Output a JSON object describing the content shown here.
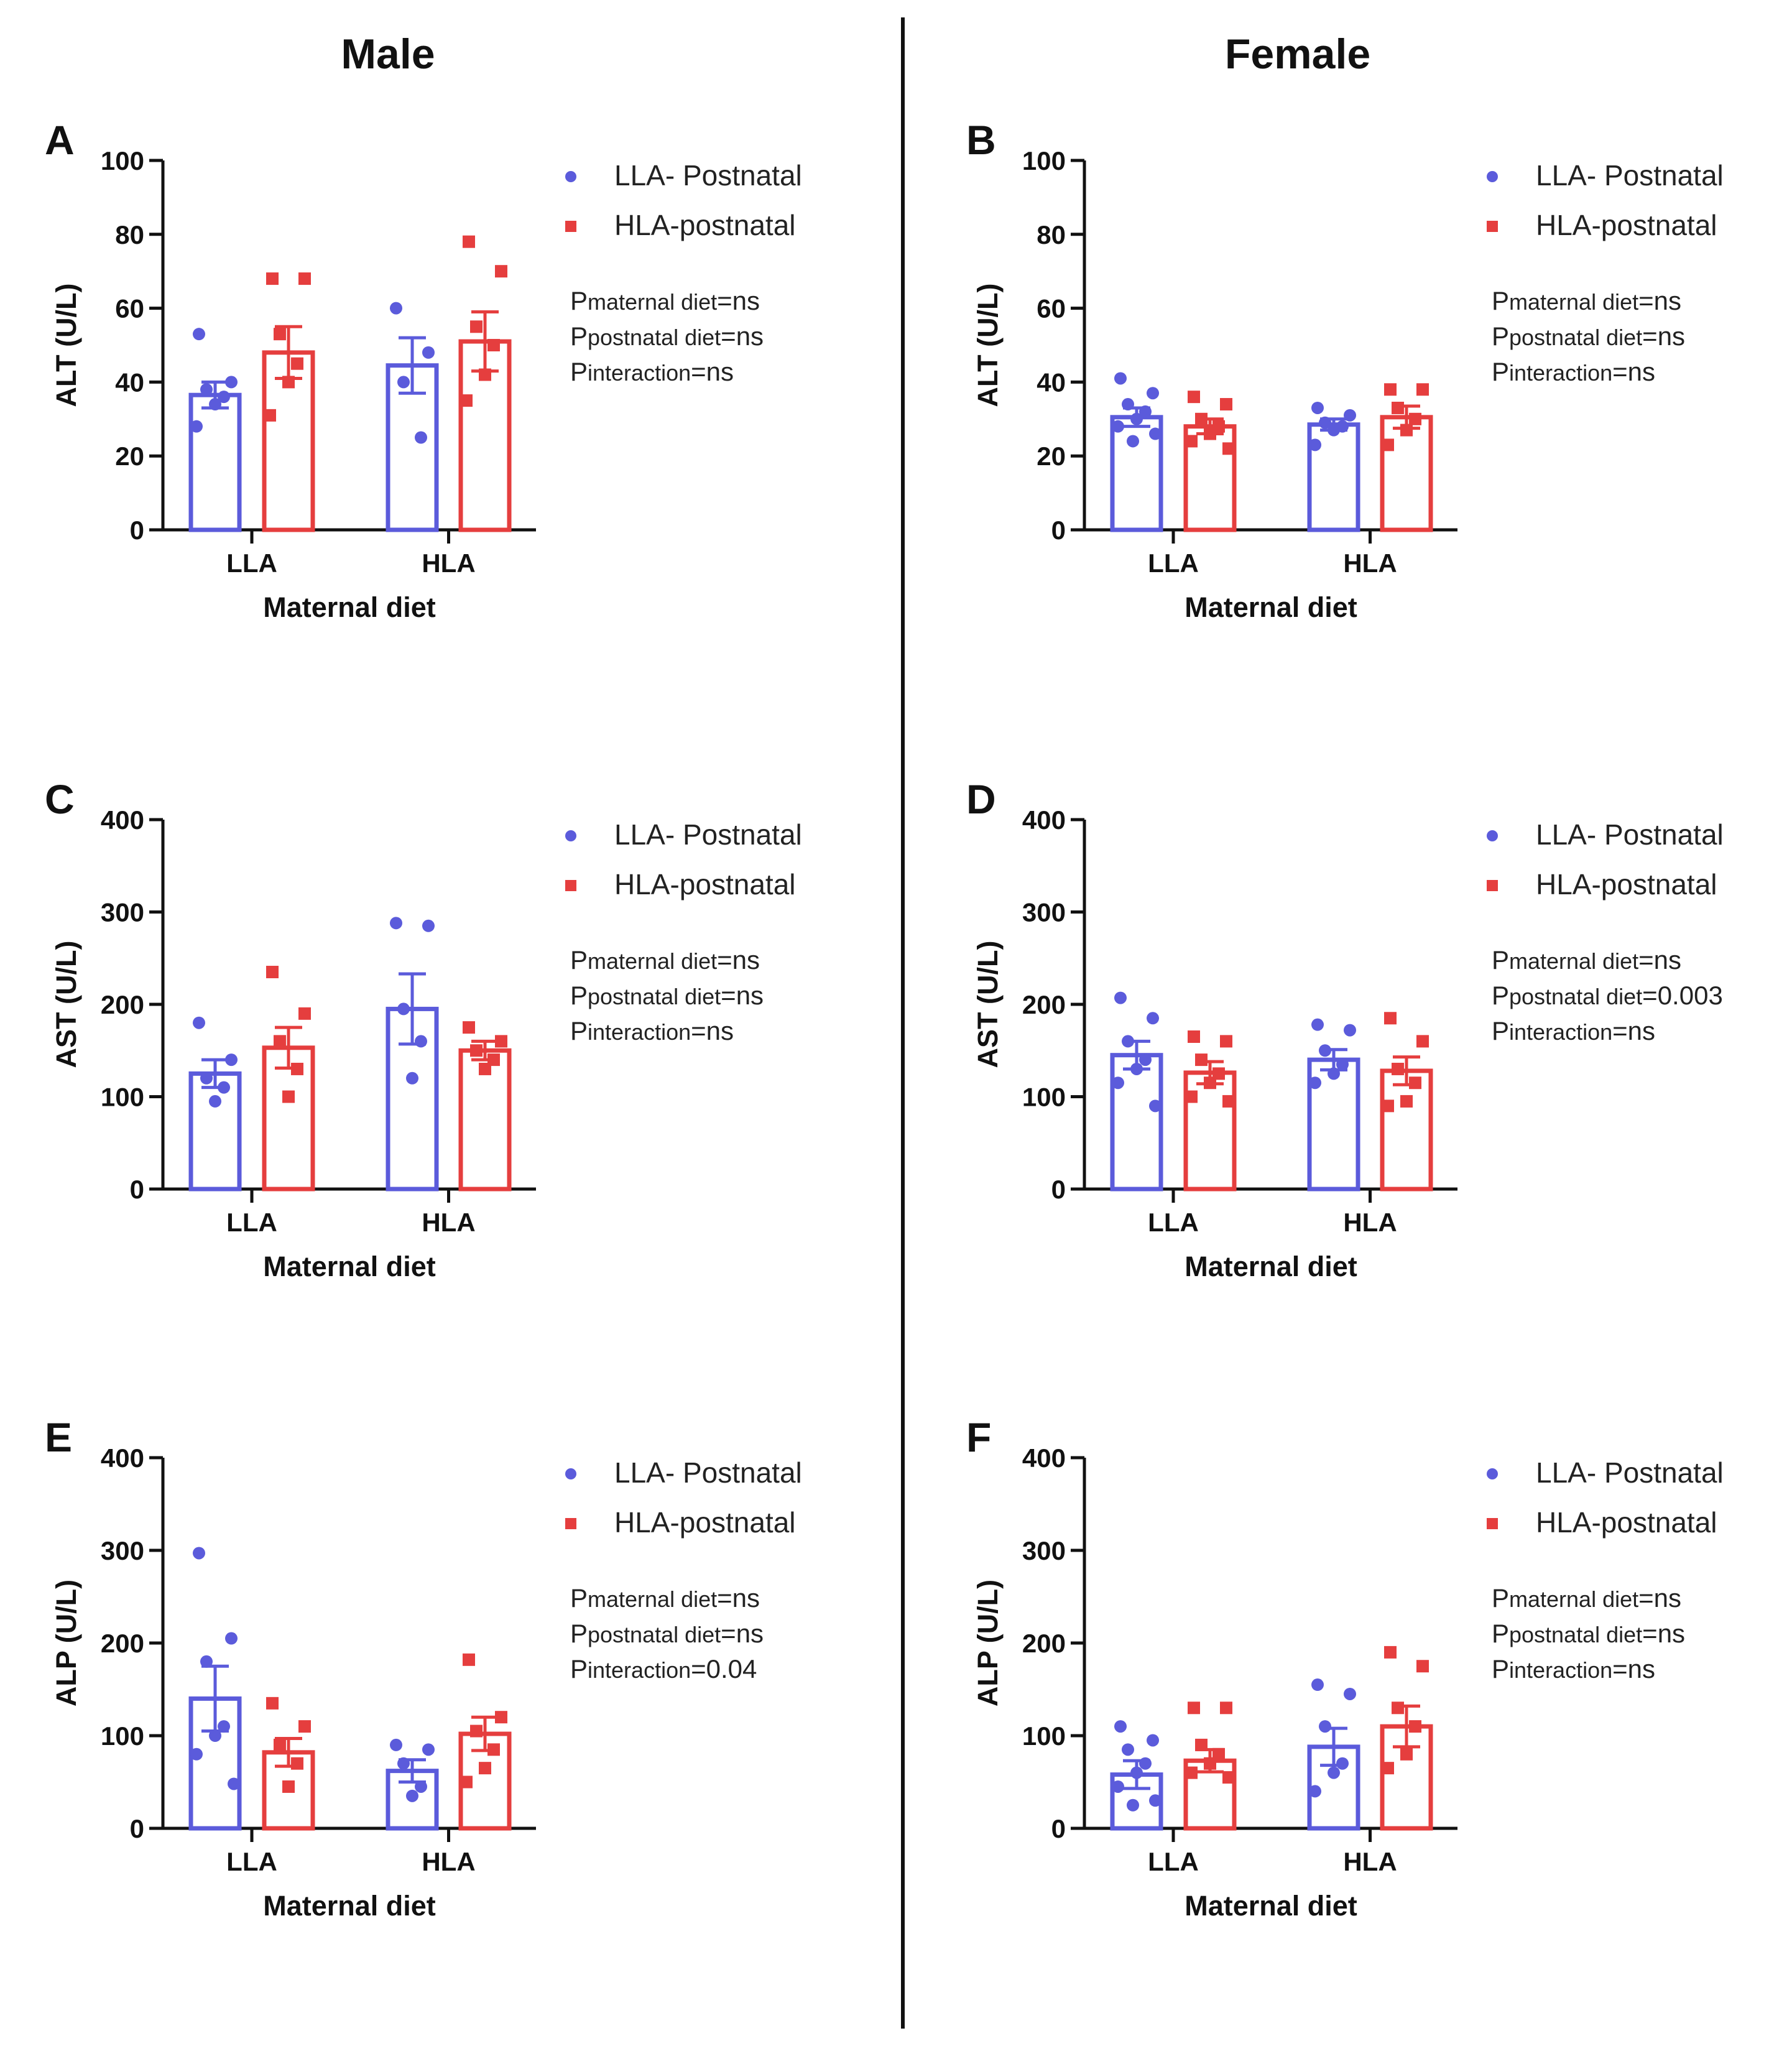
{
  "columns": {
    "left": "Male",
    "right": "Female"
  },
  "colors": {
    "llaPostnatal": "#5b5bdb",
    "hlaPostnatal": "#e53e3e",
    "axis": "#111111"
  },
  "chart_data": [
    {
      "panel": "A",
      "type": "bar",
      "column": "left",
      "ylabel": "ALT (U/L)",
      "xlabel": "Maternal diet",
      "ylim": [
        0,
        100
      ],
      "yticks": [
        0,
        20,
        40,
        60,
        80,
        100
      ],
      "categories": [
        "LLA",
        "HLA"
      ],
      "series": [
        {
          "name": "LLA- Postnatal",
          "values": [
            36.5,
            44.5
          ],
          "sem": [
            3.5,
            7.5
          ],
          "points": [
            [
              53,
              40,
              38,
              36,
              34,
              28
            ],
            [
              60,
              48,
              40,
              25
            ]
          ]
        },
        {
          "name": "HLA-postnatal",
          "values": [
            48,
            51
          ],
          "sem": [
            7,
            8
          ],
          "points": [
            [
              68,
              68,
              53,
              45,
              40,
              31
            ],
            [
              78,
              70,
              55,
              50,
              42,
              35
            ]
          ]
        }
      ],
      "stats": [
        {
          "p": "P",
          "sub": "maternal diet",
          "val": "=ns"
        },
        {
          "p": "P",
          "sub": "postnatal diet",
          "val": "=ns"
        },
        {
          "p": "P",
          "sub": "interaction",
          "val": "=ns"
        }
      ]
    },
    {
      "panel": "B",
      "type": "bar",
      "column": "right",
      "ylabel": "ALT (U/L)",
      "xlabel": "Maternal diet",
      "ylim": [
        0,
        100
      ],
      "yticks": [
        0,
        20,
        40,
        60,
        80,
        100
      ],
      "categories": [
        "LLA",
        "HLA"
      ],
      "series": [
        {
          "name": "LLA- Postnatal",
          "values": [
            30.5,
            28.5
          ],
          "sem": [
            2.5,
            1.5
          ],
          "points": [
            [
              41,
              37,
              34,
              32,
              30,
              28,
              26,
              24
            ],
            [
              33,
              31,
              29,
              28,
              27,
              23
            ]
          ]
        },
        {
          "name": "HLA-postnatal",
          "values": [
            28,
            30.5
          ],
          "sem": [
            2,
            3
          ],
          "points": [
            [
              36,
              34,
              30,
              28,
              26,
              24,
              22
            ],
            [
              38,
              38,
              33,
              30,
              27,
              23
            ]
          ]
        }
      ],
      "stats": [
        {
          "p": "P",
          "sub": "maternal diet",
          "val": "=ns"
        },
        {
          "p": "P",
          "sub": "postnatal diet",
          "val": "=ns"
        },
        {
          "p": "P",
          "sub": "interaction",
          "val": "=ns"
        }
      ]
    },
    {
      "panel": "C",
      "type": "bar",
      "column": "left",
      "ylabel": "AST (U/L)",
      "xlabel": "Maternal diet",
      "ylim": [
        0,
        400
      ],
      "yticks": [
        0,
        100,
        200,
        300,
        400
      ],
      "categories": [
        "LLA",
        "HLA"
      ],
      "series": [
        {
          "name": "LLA- Postnatal",
          "values": [
            125,
            195
          ],
          "sem": [
            15,
            38
          ],
          "points": [
            [
              180,
              140,
              120,
              110,
              95
            ],
            [
              288,
              285,
              195,
              160,
              120
            ]
          ]
        },
        {
          "name": "HLA-postnatal",
          "values": [
            153,
            150
          ],
          "sem": [
            22,
            10
          ],
          "points": [
            [
              235,
              190,
              160,
              130,
              100
            ],
            [
              175,
              160,
              150,
              140,
              130
            ]
          ]
        }
      ],
      "stats": [
        {
          "p": "P",
          "sub": "maternal diet",
          "val": "=ns"
        },
        {
          "p": "P",
          "sub": "postnatal diet",
          "val": "=ns"
        },
        {
          "p": "P",
          "sub": "interaction",
          "val": "=ns"
        }
      ]
    },
    {
      "panel": "D",
      "type": "bar",
      "column": "right",
      "ylabel": "AST (U/L)",
      "xlabel": "Maternal diet",
      "ylim": [
        0,
        400
      ],
      "yticks": [
        0,
        100,
        200,
        300,
        400
      ],
      "categories": [
        "LLA",
        "HLA"
      ],
      "series": [
        {
          "name": "LLA- Postnatal",
          "values": [
            145,
            140
          ],
          "sem": [
            15,
            11
          ],
          "points": [
            [
              207,
              185,
              160,
              140,
              130,
              115,
              90
            ],
            [
              178,
              172,
              150,
              135,
              125,
              115
            ]
          ]
        },
        {
          "name": "HLA-postnatal",
          "values": [
            126,
            128
          ],
          "sem": [
            12,
            15
          ],
          "points": [
            [
              165,
              160,
              140,
              125,
              115,
              100,
              95
            ],
            [
              185,
              160,
              130,
              115,
              95,
              90
            ]
          ]
        }
      ],
      "stats": [
        {
          "p": "P",
          "sub": "maternal diet",
          "val": "=ns"
        },
        {
          "p": "P",
          "sub": "postnatal diet",
          "val": "=0.003"
        },
        {
          "p": "P",
          "sub": "interaction",
          "val": "=ns"
        }
      ]
    },
    {
      "panel": "E",
      "type": "bar",
      "column": "left",
      "ylabel": "ALP (U/L)",
      "xlabel": "Maternal diet",
      "ylim": [
        0,
        400
      ],
      "yticks": [
        0,
        100,
        200,
        300,
        400
      ],
      "categories": [
        "LLA",
        "HLA"
      ],
      "series": [
        {
          "name": "LLA- Postnatal",
          "values": [
            140,
            62
          ],
          "sem": [
            35,
            12
          ],
          "points": [
            [
              297,
              205,
              180,
              110,
              100,
              80,
              48
            ],
            [
              90,
              85,
              70,
              45,
              35
            ]
          ]
        },
        {
          "name": "HLA-postnatal",
          "values": [
            82,
            102
          ],
          "sem": [
            15,
            18
          ],
          "points": [
            [
              135,
              110,
              90,
              70,
              45
            ],
            [
              182,
              120,
              105,
              85,
              65,
              50
            ]
          ]
        }
      ],
      "stats": [
        {
          "p": "P",
          "sub": "maternal diet",
          "val": "=ns"
        },
        {
          "p": "P",
          "sub": "postnatal diet",
          "val": "=ns"
        },
        {
          "p": "P",
          "sub": "interaction",
          "val": "=0.04"
        }
      ]
    },
    {
      "panel": "F",
      "type": "bar",
      "column": "right",
      "ylabel": "ALP (U/L)",
      "xlabel": "Maternal diet",
      "ylim": [
        0,
        400
      ],
      "yticks": [
        0,
        100,
        200,
        300,
        400
      ],
      "categories": [
        "LLA",
        "HLA"
      ],
      "series": [
        {
          "name": "LLA- Postnatal",
          "values": [
            58,
            88
          ],
          "sem": [
            15,
            20
          ],
          "points": [
            [
              110,
              95,
              85,
              70,
              60,
              45,
              30,
              25
            ],
            [
              155,
              145,
              110,
              70,
              60,
              40
            ]
          ]
        },
        {
          "name": "HLA-postnatal",
          "values": [
            73,
            110
          ],
          "sem": [
            12,
            22
          ],
          "points": [
            [
              130,
              130,
              90,
              80,
              70,
              60,
              55
            ],
            [
              190,
              175,
              130,
              110,
              80,
              65
            ]
          ]
        }
      ],
      "stats": [
        {
          "p": "P",
          "sub": "maternal diet",
          "val": "=ns"
        },
        {
          "p": "P",
          "sub": "postnatal diet",
          "val": "=ns"
        },
        {
          "p": "P",
          "sub": "interaction",
          "val": "=ns"
        }
      ]
    }
  ]
}
